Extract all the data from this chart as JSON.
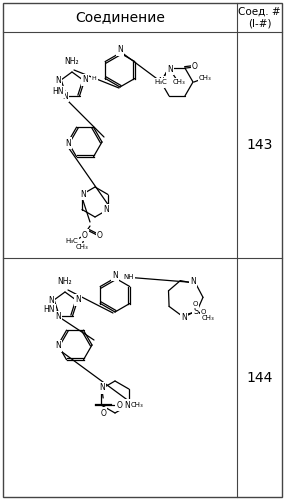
{
  "title_col1": "Соединение",
  "title_col2": "Соед. #\n(I-#)",
  "compound_143": "143",
  "compound_144": "144",
  "bg_color": "#ffffff",
  "border_color": "#444444",
  "text_color": "#000000",
  "header_fontsize": 10,
  "number_fontsize": 10,
  "fig_width": 2.85,
  "fig_height": 5.0,
  "dpi": 100
}
